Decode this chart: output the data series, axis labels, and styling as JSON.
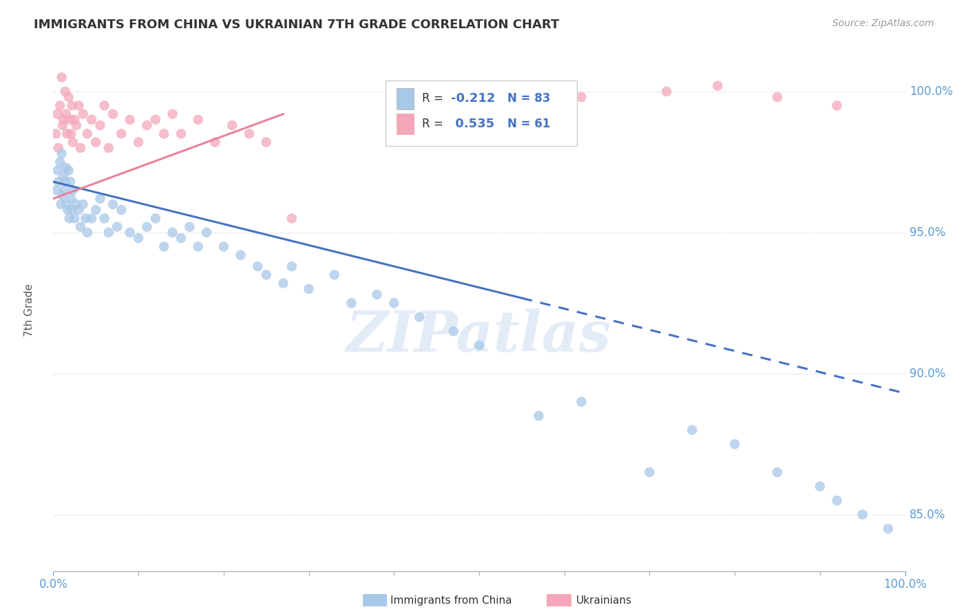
{
  "title": "IMMIGRANTS FROM CHINA VS UKRAINIAN 7TH GRADE CORRELATION CHART",
  "source": "Source: ZipAtlas.com",
  "ylabel": "7th Grade",
  "xlim": [
    0.0,
    100.0
  ],
  "ylim": [
    83.0,
    101.5
  ],
  "yticks": [
    85.0,
    90.0,
    95.0,
    100.0
  ],
  "ytick_labels": [
    "85.0%",
    "90.0%",
    "95.0%",
    "100.0%"
  ],
  "series1_name": "Immigrants from China",
  "series1_color": "#a8c8e8",
  "series2_name": "Ukrainians",
  "series2_color": "#f4a7b9",
  "blue_line_color": "#4472c4",
  "pink_line_color": "#e8829a",
  "background_color": "#ffffff",
  "grid_color": "#cccccc",
  "title_fontsize": 13,
  "axis_label_color": "#5b9bd5",
  "watermark_text": "ZIPatlas",
  "blue_line_x0": 0.0,
  "blue_line_y0": 96.8,
  "blue_line_x1": 100.0,
  "blue_line_y1": 89.3,
  "blue_solid_end": 55.0,
  "pink_line_x0": 0.0,
  "pink_line_y0": 96.2,
  "pink_line_x1": 27.0,
  "pink_line_y1": 99.2,
  "china_x": [
    0.4,
    0.5,
    0.6,
    0.8,
    0.9,
    1.0,
    1.1,
    1.2,
    1.3,
    1.4,
    1.5,
    1.6,
    1.7,
    1.8,
    1.9,
    2.0,
    2.1,
    2.2,
    2.3,
    2.5,
    2.7,
    3.0,
    3.2,
    3.5,
    3.8,
    4.0,
    4.5,
    5.0,
    5.5,
    6.0,
    6.5,
    7.0,
    7.5,
    8.0,
    9.0,
    10.0,
    11.0,
    12.0,
    13.0,
    14.0,
    15.0,
    16.0,
    17.0,
    18.0,
    20.0,
    22.0,
    24.0,
    25.0,
    27.0,
    28.0,
    30.0,
    33.0,
    35.0,
    38.0,
    40.0,
    43.0,
    47.0,
    50.0,
    57.0,
    62.0,
    70.0,
    75.0,
    80.0,
    85.0,
    90.0,
    92.0,
    95.0,
    98.0
  ],
  "china_y": [
    96.5,
    97.2,
    96.8,
    97.5,
    96.0,
    97.8,
    96.3,
    97.0,
    96.5,
    96.8,
    97.3,
    96.0,
    95.8,
    97.2,
    95.5,
    96.8,
    96.2,
    95.8,
    96.5,
    95.5,
    96.0,
    95.8,
    95.2,
    96.0,
    95.5,
    95.0,
    95.5,
    95.8,
    96.2,
    95.5,
    95.0,
    96.0,
    95.2,
    95.8,
    95.0,
    94.8,
    95.2,
    95.5,
    94.5,
    95.0,
    94.8,
    95.2,
    94.5,
    95.0,
    94.5,
    94.2,
    93.8,
    93.5,
    93.2,
    93.8,
    93.0,
    93.5,
    92.5,
    92.8,
    92.5,
    92.0,
    91.5,
    91.0,
    88.5,
    89.0,
    86.5,
    88.0,
    87.5,
    86.5,
    86.0,
    85.5,
    85.0,
    84.5
  ],
  "ukr_x": [
    0.3,
    0.5,
    0.6,
    0.8,
    1.0,
    1.1,
    1.2,
    1.4,
    1.5,
    1.6,
    1.8,
    2.0,
    2.1,
    2.2,
    2.3,
    2.5,
    2.7,
    3.0,
    3.2,
    3.5,
    4.0,
    4.5,
    5.0,
    5.5,
    6.0,
    6.5,
    7.0,
    8.0,
    9.0,
    10.0,
    11.0,
    12.0,
    13.0,
    14.0,
    15.0,
    17.0,
    19.0,
    21.0,
    23.0,
    25.0,
    28.0,
    62.0,
    72.0,
    78.0,
    85.0,
    92.0
  ],
  "ukr_y": [
    98.5,
    99.2,
    98.0,
    99.5,
    100.5,
    98.8,
    99.0,
    100.0,
    99.2,
    98.5,
    99.8,
    99.0,
    98.5,
    99.5,
    98.2,
    99.0,
    98.8,
    99.5,
    98.0,
    99.2,
    98.5,
    99.0,
    98.2,
    98.8,
    99.5,
    98.0,
    99.2,
    98.5,
    99.0,
    98.2,
    98.8,
    99.0,
    98.5,
    99.2,
    98.5,
    99.0,
    98.2,
    98.8,
    98.5,
    98.2,
    95.5,
    99.8,
    100.0,
    100.2,
    99.8,
    99.5
  ]
}
